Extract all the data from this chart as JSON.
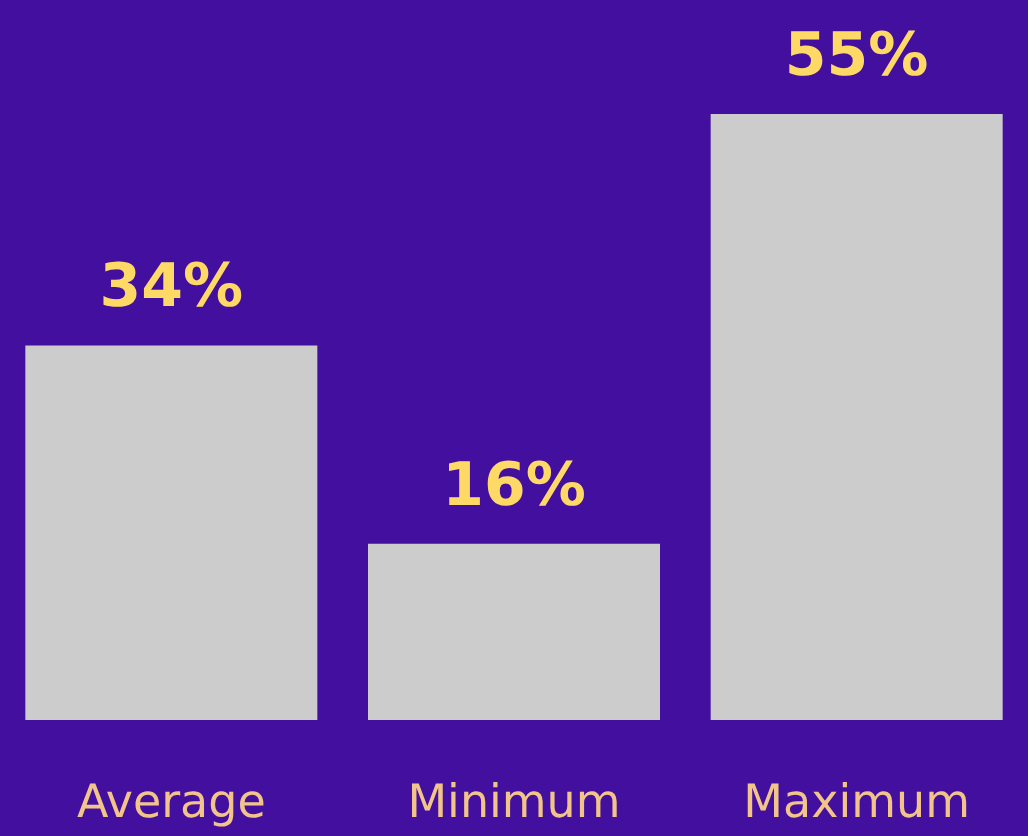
{
  "chart_data": {
    "type": "bar",
    "categories": [
      "Average",
      "Minimum",
      "Maximum"
    ],
    "values": [
      34,
      16,
      55
    ],
    "value_labels": [
      "34%",
      "16%",
      "55%"
    ],
    "color": "#cccccc"
  }
}
